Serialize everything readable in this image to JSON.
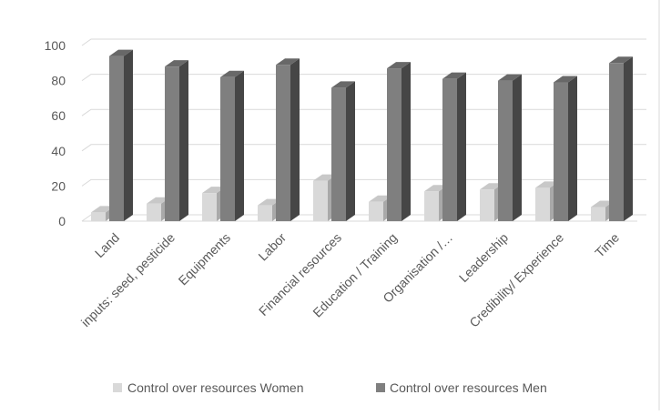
{
  "chart_data": {
    "type": "bar",
    "categories": [
      "Land",
      "inputs: seed, pesticide",
      "Equipments",
      "Labor",
      "Financial resources",
      "Education / Training",
      "Organisation /…",
      "Leadership",
      "Credibility/ Experience",
      "Time"
    ],
    "series": [
      {
        "name": "Control over resources Women",
        "values": [
          5,
          10,
          16,
          9,
          23,
          11,
          17,
          18,
          19,
          8
        ],
        "color": "#d9d9d9"
      },
      {
        "name": "Control over resources Men",
        "values": [
          94,
          88,
          82,
          89,
          76,
          87,
          81,
          80,
          79,
          90
        ],
        "color": "#7f7f7f"
      }
    ],
    "ylim": [
      0,
      100
    ],
    "yticks": [
      0,
      20,
      40,
      60,
      80,
      100
    ],
    "ytick_labels": [
      "0",
      "20",
      "40",
      "60",
      "80",
      "100"
    ],
    "grid": true,
    "style": "3d-clustered-column",
    "legend_position": "bottom"
  }
}
